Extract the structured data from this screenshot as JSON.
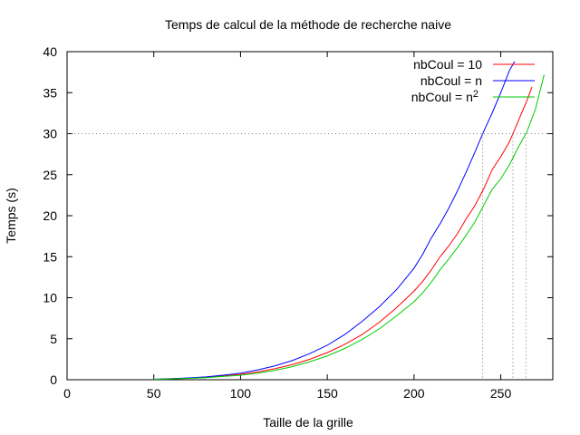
{
  "chart_data": {
    "type": "line",
    "title": "Temps de calcul de la méthode de recherche naive",
    "xlabel": "Taille de la grille",
    "ylabel": "Temps (s)",
    "xlim": [
      0,
      280
    ],
    "ylim": [
      0,
      40
    ],
    "x_ticks": [
      0,
      50,
      100,
      150,
      200,
      250
    ],
    "y_ticks": [
      0,
      5,
      10,
      15,
      20,
      25,
      30,
      35,
      40
    ],
    "legend_position": "top-right",
    "grid": false,
    "reference_line_y": 30,
    "series": [
      {
        "name": "nbCoul = 10",
        "color": "#ff0000",
        "x": [
          50,
          60,
          70,
          80,
          90,
          100,
          110,
          120,
          130,
          140,
          150,
          160,
          170,
          180,
          190,
          200,
          205,
          210,
          215,
          220,
          225,
          230,
          235,
          240,
          245,
          250,
          255,
          260,
          265,
          268
        ],
        "y": [
          0.05,
          0.12,
          0.18,
          0.28,
          0.45,
          0.65,
          0.95,
          1.35,
          1.85,
          2.5,
          3.3,
          4.3,
          5.5,
          7.0,
          8.8,
          10.8,
          12.0,
          13.4,
          15.0,
          16.3,
          17.8,
          19.6,
          21.2,
          23.2,
          25.6,
          27.2,
          29.0,
          31.5,
          34.0,
          35.7
        ]
      },
      {
        "name": "nbCoul = n",
        "color": "#0000ff",
        "x": [
          50,
          60,
          70,
          80,
          90,
          100,
          110,
          120,
          130,
          140,
          150,
          160,
          170,
          180,
          190,
          200,
          205,
          210,
          215,
          220,
          225,
          230,
          235,
          240,
          245,
          250,
          255,
          258
        ],
        "y": [
          0.05,
          0.13,
          0.22,
          0.35,
          0.55,
          0.8,
          1.2,
          1.7,
          2.35,
          3.2,
          4.2,
          5.5,
          7.1,
          8.9,
          11.0,
          13.6,
          15.3,
          17.3,
          19.0,
          20.9,
          23.0,
          25.3,
          27.7,
          30.2,
          32.5,
          35.0,
          37.7,
          38.8
        ]
      },
      {
        "name": "nbCoul = n2",
        "color": "#00cc00",
        "x": [
          50,
          60,
          70,
          80,
          90,
          100,
          110,
          120,
          130,
          140,
          150,
          160,
          170,
          180,
          190,
          200,
          205,
          210,
          215,
          220,
          225,
          230,
          235,
          240,
          245,
          250,
          255,
          260,
          265,
          270,
          275
        ],
        "y": [
          0.04,
          0.1,
          0.16,
          0.25,
          0.4,
          0.55,
          0.8,
          1.15,
          1.6,
          2.2,
          2.9,
          3.8,
          4.9,
          6.2,
          7.8,
          9.5,
          10.6,
          11.9,
          13.4,
          14.7,
          16.1,
          17.6,
          19.2,
          21.2,
          23.2,
          24.5,
          26.2,
          28.3,
          30.2,
          33.0,
          37.2
        ]
      }
    ]
  }
}
